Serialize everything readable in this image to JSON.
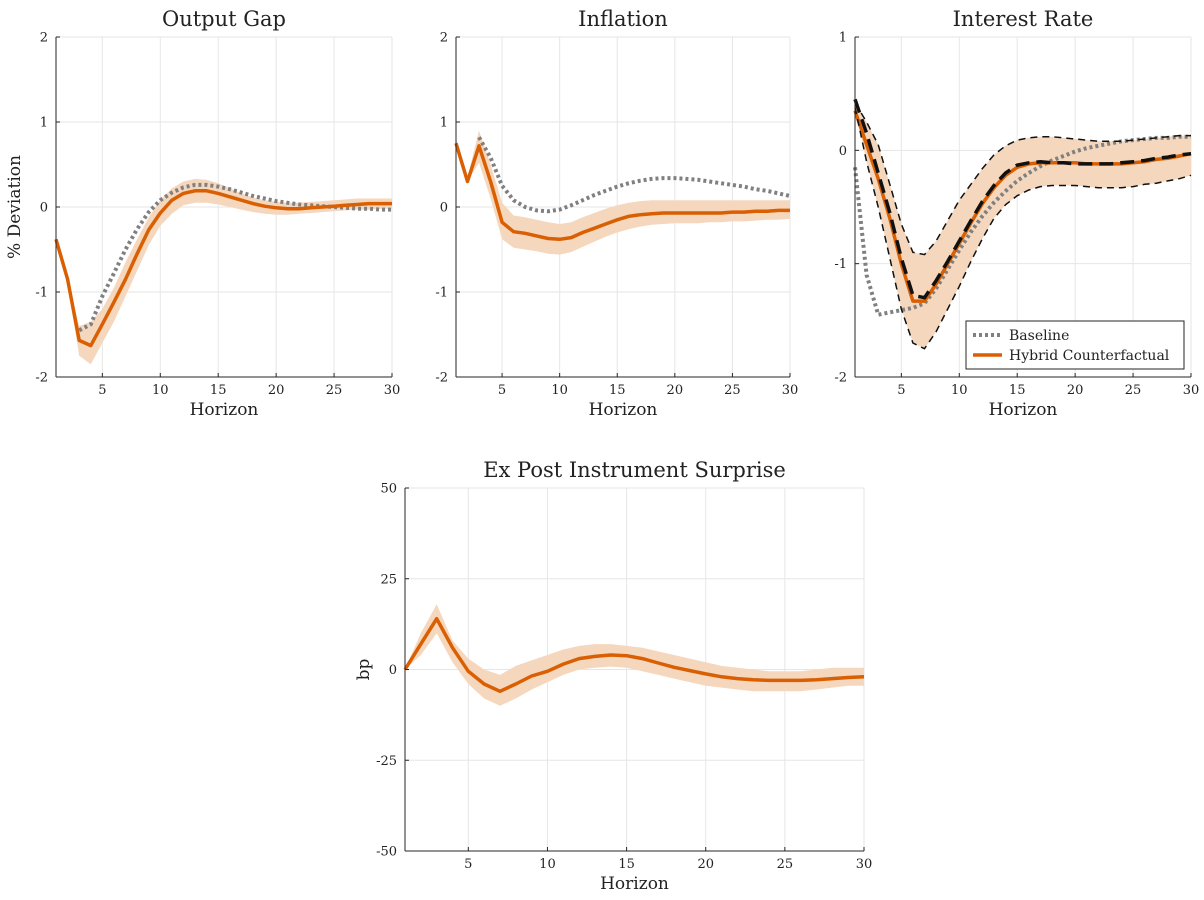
{
  "colors": {
    "counterfactual": "#d95f02",
    "band": "#f5d7bd",
    "baseline": "#808080",
    "bounds": "#111111",
    "grid": "#e6e6e6"
  },
  "chart_data": [
    {
      "type": "line",
      "title": "Output Gap",
      "xlabel": "Horizon",
      "ylabel": "% Deviation",
      "xlim": [
        1,
        30
      ],
      "ylim": [
        -2,
        2
      ],
      "xticks": [
        5,
        10,
        15,
        20,
        25,
        30
      ],
      "yticks": [
        -2,
        -1,
        0,
        1,
        2
      ],
      "grid": true,
      "x": [
        1,
        2,
        3,
        4,
        5,
        6,
        7,
        8,
        9,
        10,
        11,
        12,
        13,
        14,
        15,
        16,
        17,
        18,
        19,
        20,
        21,
        22,
        23,
        24,
        25,
        26,
        27,
        28,
        29,
        30
      ],
      "band": {
        "lower": [
          -0.4,
          -0.9,
          -1.75,
          -1.85,
          -1.6,
          -1.35,
          -1.05,
          -0.75,
          -0.45,
          -0.22,
          -0.08,
          0.02,
          0.05,
          0.05,
          0.03,
          0.0,
          -0.03,
          -0.06,
          -0.08,
          -0.09,
          -0.09,
          -0.08,
          -0.07,
          -0.06,
          -0.05,
          -0.04,
          -0.03,
          -0.03,
          -0.02,
          -0.02
        ],
        "upper": [
          -0.4,
          -0.85,
          -1.4,
          -1.35,
          -1.2,
          -0.95,
          -0.65,
          -0.38,
          -0.12,
          0.08,
          0.22,
          0.3,
          0.33,
          0.32,
          0.28,
          0.22,
          0.16,
          0.11,
          0.08,
          0.06,
          0.05,
          0.05,
          0.06,
          0.07,
          0.08,
          0.09,
          0.1,
          0.1,
          0.1,
          0.1
        ]
      },
      "series": [
        {
          "name": "Baseline",
          "style": "dotted",
          "values": [
            null,
            null,
            -1.45,
            -1.38,
            -1.05,
            -0.78,
            -0.5,
            -0.26,
            -0.06,
            0.08,
            0.17,
            0.23,
            0.26,
            0.26,
            0.24,
            0.21,
            0.17,
            0.13,
            0.1,
            0.07,
            0.05,
            0.03,
            0.02,
            0.01,
            0.0,
            -0.01,
            -0.02,
            -0.02,
            -0.03,
            -0.03
          ]
        },
        {
          "name": "Hybrid Counterfactual",
          "style": "solid",
          "values": [
            -0.38,
            -0.85,
            -1.57,
            -1.63,
            -1.38,
            -1.12,
            -0.85,
            -0.55,
            -0.27,
            -0.07,
            0.08,
            0.16,
            0.19,
            0.19,
            0.16,
            0.12,
            0.08,
            0.04,
            0.01,
            -0.01,
            -0.02,
            -0.02,
            -0.01,
            0.0,
            0.01,
            0.02,
            0.03,
            0.04,
            0.04,
            0.04
          ]
        }
      ]
    },
    {
      "type": "line",
      "title": "Inflation",
      "xlabel": "Horizon",
      "ylabel": "",
      "xlim": [
        1,
        30
      ],
      "ylim": [
        -2,
        2
      ],
      "xticks": [
        5,
        10,
        15,
        20,
        25,
        30
      ],
      "yticks": [
        -2,
        -1,
        0,
        1,
        2
      ],
      "grid": true,
      "x": [
        1,
        2,
        3,
        4,
        5,
        6,
        7,
        8,
        9,
        10,
        11,
        12,
        13,
        14,
        15,
        16,
        17,
        18,
        19,
        20,
        21,
        22,
        23,
        24,
        25,
        26,
        27,
        28,
        29,
        30
      ],
      "band": {
        "lower": [
          0.75,
          0.3,
          0.52,
          0.1,
          -0.38,
          -0.48,
          -0.5,
          -0.52,
          -0.55,
          -0.56,
          -0.53,
          -0.47,
          -0.41,
          -0.35,
          -0.3,
          -0.26,
          -0.23,
          -0.21,
          -0.2,
          -0.19,
          -0.19,
          -0.19,
          -0.18,
          -0.18,
          -0.17,
          -0.17,
          -0.16,
          -0.15,
          -0.15,
          -0.14
        ],
        "upper": [
          0.8,
          0.35,
          0.9,
          0.5,
          0.05,
          -0.1,
          -0.12,
          -0.15,
          -0.18,
          -0.2,
          -0.18,
          -0.12,
          -0.07,
          -0.02,
          0.02,
          0.05,
          0.07,
          0.08,
          0.08,
          0.08,
          0.08,
          0.08,
          0.08,
          0.08,
          0.08,
          0.08,
          0.08,
          0.08,
          0.08,
          0.08
        ]
      },
      "series": [
        {
          "name": "Baseline",
          "style": "dotted",
          "values": [
            null,
            null,
            0.82,
            0.58,
            0.25,
            0.08,
            0.0,
            -0.04,
            -0.05,
            -0.03,
            0.02,
            0.08,
            0.14,
            0.19,
            0.24,
            0.28,
            0.31,
            0.33,
            0.34,
            0.34,
            0.33,
            0.32,
            0.3,
            0.28,
            0.26,
            0.24,
            0.21,
            0.19,
            0.16,
            0.13
          ]
        },
        {
          "name": "Hybrid Counterfactual",
          "style": "solid",
          "values": [
            0.75,
            0.3,
            0.72,
            0.3,
            -0.18,
            -0.29,
            -0.31,
            -0.34,
            -0.37,
            -0.38,
            -0.36,
            -0.3,
            -0.25,
            -0.2,
            -0.15,
            -0.11,
            -0.09,
            -0.08,
            -0.07,
            -0.07,
            -0.07,
            -0.07,
            -0.07,
            -0.07,
            -0.06,
            -0.06,
            -0.05,
            -0.05,
            -0.04,
            -0.04
          ]
        }
      ]
    },
    {
      "type": "line",
      "title": "Interest Rate",
      "xlabel": "Horizon",
      "ylabel": "",
      "xlim": [
        1,
        30
      ],
      "ylim": [
        -2,
        1
      ],
      "xticks": [
        5,
        10,
        15,
        20,
        25,
        30
      ],
      "yticks": [
        -2,
        -1,
        0,
        1
      ],
      "grid": true,
      "legend_position": "bottom-right",
      "legend": [
        "Baseline",
        "Hybrid Counterfactual"
      ],
      "x": [
        1,
        2,
        3,
        4,
        5,
        6,
        7,
        8,
        9,
        10,
        11,
        12,
        13,
        14,
        15,
        16,
        17,
        18,
        19,
        20,
        21,
        22,
        23,
        24,
        25,
        26,
        27,
        28,
        29,
        30
      ],
      "band": {
        "lower": [
          0.38,
          -0.1,
          -0.5,
          -0.95,
          -1.4,
          -1.7,
          -1.75,
          -1.6,
          -1.4,
          -1.2,
          -0.98,
          -0.78,
          -0.6,
          -0.48,
          -0.4,
          -0.35,
          -0.32,
          -0.31,
          -0.31,
          -0.31,
          -0.32,
          -0.33,
          -0.33,
          -0.33,
          -0.32,
          -0.3,
          -0.29,
          -0.27,
          -0.25,
          -0.22
        ],
        "upper": [
          0.42,
          0.25,
          0.05,
          -0.3,
          -0.65,
          -0.9,
          -0.92,
          -0.8,
          -0.62,
          -0.44,
          -0.3,
          -0.16,
          -0.04,
          0.04,
          0.09,
          0.11,
          0.12,
          0.12,
          0.11,
          0.1,
          0.09,
          0.08,
          0.08,
          0.08,
          0.09,
          0.1,
          0.11,
          0.12,
          0.13,
          0.13
        ]
      },
      "series": [
        {
          "name": "Baseline",
          "style": "dotted",
          "values": [
            -0.15,
            -1.1,
            -1.45,
            -1.43,
            -1.41,
            -1.39,
            -1.35,
            -1.22,
            -1.05,
            -0.88,
            -0.72,
            -0.58,
            -0.46,
            -0.36,
            -0.27,
            -0.2,
            -0.14,
            -0.09,
            -0.05,
            -0.01,
            0.02,
            0.04,
            0.06,
            0.08,
            0.09,
            0.1,
            0.11,
            0.11,
            0.12,
            0.12
          ]
        },
        {
          "name": "Hybrid Counterfactual",
          "style": "solid",
          "values": [
            0.35,
            0.05,
            -0.25,
            -0.6,
            -1.0,
            -1.33,
            -1.33,
            -1.18,
            -1.0,
            -0.82,
            -0.64,
            -0.47,
            -0.33,
            -0.22,
            -0.15,
            -0.12,
            -0.11,
            -0.11,
            -0.11,
            -0.11,
            -0.12,
            -0.12,
            -0.12,
            -0.12,
            -0.11,
            -0.1,
            -0.08,
            -0.07,
            -0.05,
            -0.03
          ]
        },
        {
          "name": "",
          "style": "dashed-bound",
          "values": [
            0.45,
            0.15,
            -0.2,
            -0.55,
            -0.95,
            -1.28,
            -1.3,
            -1.15,
            -0.98,
            -0.8,
            -0.62,
            -0.45,
            -0.31,
            -0.2,
            -0.13,
            -0.11,
            -0.1,
            -0.11,
            -0.11,
            -0.12,
            -0.12,
            -0.12,
            -0.12,
            -0.11,
            -0.1,
            -0.09,
            -0.07,
            -0.06,
            -0.04,
            -0.03
          ]
        },
        {
          "name": "",
          "style": "thin-dashed",
          "values": [
            0.42,
            0.25,
            0.05,
            -0.3,
            -0.65,
            -0.9,
            -0.92,
            -0.8,
            -0.62,
            -0.44,
            -0.3,
            -0.16,
            -0.04,
            0.04,
            0.09,
            0.11,
            0.12,
            0.12,
            0.11,
            0.1,
            0.09,
            0.08,
            0.08,
            0.08,
            0.09,
            0.1,
            0.11,
            0.12,
            0.13,
            0.13
          ]
        },
        {
          "name": "",
          "style": "thin-dashed",
          "values": [
            0.38,
            -0.1,
            -0.5,
            -0.95,
            -1.4,
            -1.7,
            -1.75,
            -1.6,
            -1.4,
            -1.2,
            -0.98,
            -0.78,
            -0.6,
            -0.48,
            -0.4,
            -0.35,
            -0.32,
            -0.31,
            -0.31,
            -0.31,
            -0.32,
            -0.33,
            -0.33,
            -0.33,
            -0.32,
            -0.3,
            -0.29,
            -0.27,
            -0.25,
            -0.22
          ]
        }
      ]
    },
    {
      "type": "line",
      "title": "Ex Post Instrument Surprise",
      "xlabel": "Horizon",
      "ylabel": "bp",
      "xlim": [
        1,
        30
      ],
      "ylim": [
        -50,
        50
      ],
      "xticks": [
        5,
        10,
        15,
        20,
        25,
        30
      ],
      "yticks": [
        -50,
        -25,
        0,
        25,
        50
      ],
      "grid": true,
      "x": [
        1,
        2,
        3,
        4,
        5,
        6,
        7,
        8,
        9,
        10,
        11,
        12,
        13,
        14,
        15,
        16,
        17,
        18,
        19,
        20,
        21,
        22,
        23,
        24,
        25,
        26,
        27,
        28,
        29,
        30
      ],
      "band": {
        "lower": [
          0,
          4,
          10,
          2,
          -4,
          -8,
          -10,
          -8,
          -5.5,
          -3.5,
          -1.5,
          0,
          0.5,
          0.8,
          0.5,
          -0.5,
          -1.5,
          -2.5,
          -3.5,
          -4.5,
          -5,
          -5.5,
          -6,
          -6,
          -6,
          -6,
          -5.5,
          -5,
          -4.5,
          -4.5
        ],
        "upper": [
          0,
          10,
          18,
          8,
          3,
          0,
          -1.5,
          1,
          2.5,
          4,
          5.5,
          6.5,
          7,
          7,
          6.5,
          6,
          5,
          4,
          3,
          2,
          1,
          0.5,
          0,
          -0.5,
          -0.5,
          -0.5,
          0,
          0.5,
          0.5,
          0.5
        ]
      },
      "series": [
        {
          "name": "Hybrid Counterfactual",
          "style": "solid",
          "values": [
            0,
            7,
            14,
            6,
            -0.5,
            -4,
            -6,
            -4,
            -1.8,
            -0.5,
            1.5,
            3,
            3.6,
            4,
            3.8,
            3,
            1.8,
            0.6,
            -0.3,
            -1.2,
            -2,
            -2.5,
            -2.8,
            -3,
            -3,
            -3,
            -2.8,
            -2.5,
            -2.2,
            -2
          ]
        }
      ]
    }
  ]
}
